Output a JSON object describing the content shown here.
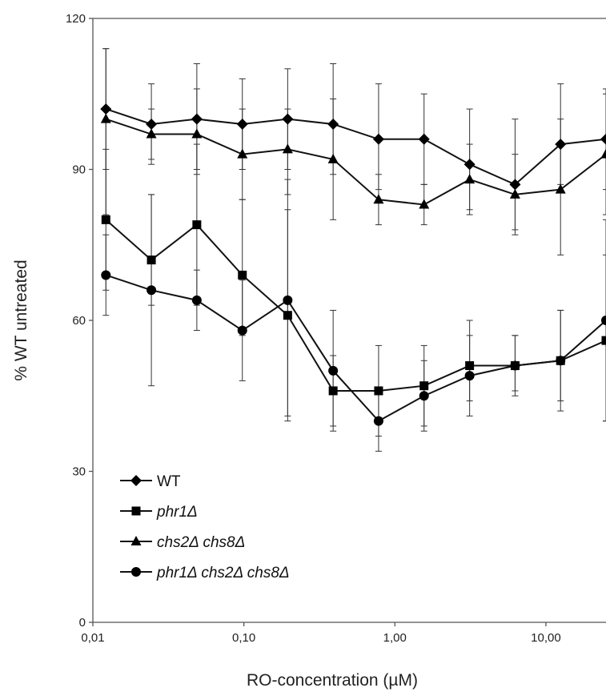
{
  "chart_data": {
    "type": "line",
    "xscale": "log",
    "xlabel": "RO-concentration (µM)",
    "ylabel": "% WT untreated",
    "ylim": [
      0,
      120
    ],
    "xlim": [
      0.01,
      25
    ],
    "xticks": [
      {
        "value": 0.01,
        "label": "0,01"
      },
      {
        "value": 0.1,
        "label": "0,10"
      },
      {
        "value": 1,
        "label": "1,00"
      },
      {
        "value": 10,
        "label": "10,00"
      }
    ],
    "yticks": [
      {
        "value": 0,
        "label": "0"
      },
      {
        "value": 30,
        "label": "30"
      },
      {
        "value": 60,
        "label": "60"
      },
      {
        "value": 90,
        "label": "90"
      },
      {
        "value": 120,
        "label": "120"
      }
    ],
    "x": [
      0.0122,
      0.0244,
      0.0488,
      0.0977,
      0.195,
      0.39,
      0.78,
      1.56,
      3.125,
      6.25,
      12.5,
      25
    ],
    "grid": false,
    "legend_position": "bottom-left",
    "series": [
      {
        "name": "WT",
        "marker": "diamond",
        "values": [
          102,
          99,
          100,
          99,
          100,
          99,
          96,
          96,
          91,
          87,
          95,
          96
        ],
        "err_low": [
          12,
          7,
          10,
          9,
          10,
          10,
          10,
          9,
          9,
          10,
          8,
          10
        ],
        "err_high": [
          12,
          8,
          11,
          9,
          10,
          12,
          11,
          9,
          11,
          13,
          12,
          10
        ]
      },
      {
        "name": "phr1Δ",
        "marker": "square",
        "values": [
          80,
          72,
          79,
          69,
          61,
          46,
          46,
          47,
          51,
          51,
          52,
          56
        ],
        "err_low": [
          14,
          9,
          16,
          12,
          20,
          7,
          9,
          8,
          7,
          5,
          8,
          16
        ],
        "err_high": [
          14,
          13,
          16,
          15,
          21,
          7,
          9,
          8,
          9,
          6,
          10,
          17
        ]
      },
      {
        "name": "chs2Δ chs8Δ",
        "marker": "triangle",
        "values": [
          100,
          97,
          97,
          93,
          94,
          92,
          84,
          83,
          88,
          85,
          86,
          93
        ],
        "err_low": [
          19,
          6,
          8,
          9,
          9,
          12,
          5,
          4,
          7,
          7,
          13,
          12
        ],
        "err_high": [
          14,
          5,
          9,
          9,
          8,
          12,
          5,
          4,
          7,
          8,
          14,
          12
        ]
      },
      {
        "name": "phr1Δ chs2Δ chs8Δ",
        "marker": "circle",
        "values": [
          69,
          66,
          64,
          58,
          64,
          50,
          40,
          45,
          49,
          51,
          52,
          60
        ],
        "err_low": [
          8,
          19,
          6,
          10,
          24,
          12,
          6,
          7,
          8,
          6,
          10,
          20
        ],
        "err_high": [
          8,
          19,
          6,
          10,
          24,
          12,
          6,
          7,
          8,
          6,
          10,
          20
        ]
      }
    ]
  }
}
